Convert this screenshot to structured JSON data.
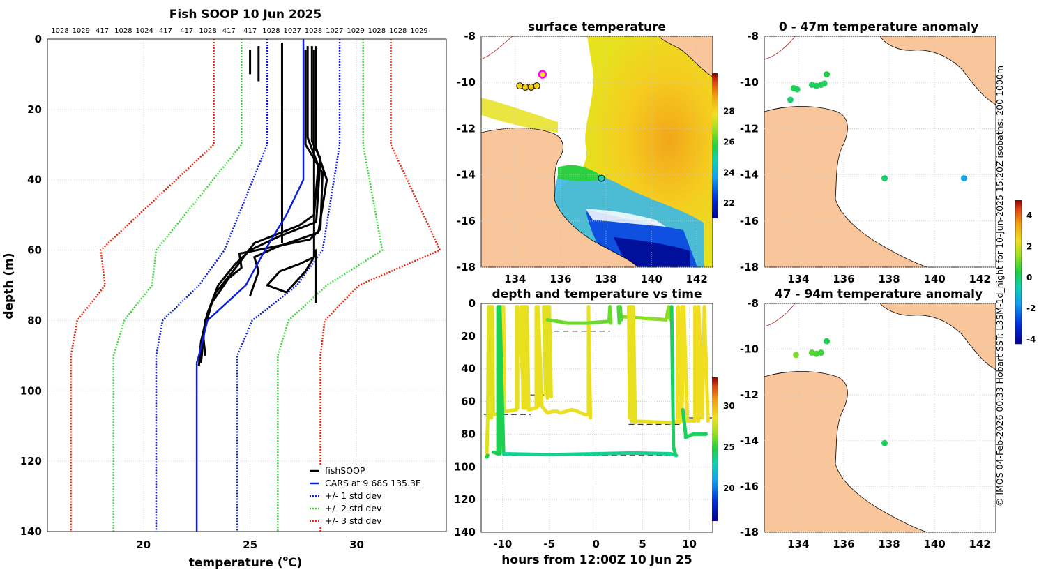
{
  "colors": {
    "fishsoop": "#000000",
    "cars": "#0a1fe0",
    "std1": "#0a1fe0",
    "std2": "#3ad83a",
    "std3": "#e8250c",
    "land": "#f9c59a",
    "grid": "#d9d9d9",
    "axis": "#262626"
  },
  "copyright": "© IMOS 04-Feb-2026 00:33 Hobart SST: L3SM-1d_night for 10-Jun-2025 15:20Z isobaths: 200  1000m",
  "chart_data": [
    {
      "id": "profile",
      "type": "line",
      "title": "Fish SOOP 10 Jun 2025",
      "xlabel": "temperature (°C)",
      "xlabel_main": "temperature (",
      "xlabel_sup": "o",
      "xlabel_unit": "C)",
      "ylabel": "depth (m)",
      "xlim": [
        15.5,
        34.2
      ],
      "ylim": [
        140,
        0
      ],
      "xticks": [
        20,
        25,
        30
      ],
      "yticks": [
        0,
        20,
        40,
        60,
        80,
        100,
        120,
        140
      ],
      "top_labels": [
        "1028",
        "1029",
        "417",
        "1028",
        "1024",
        "417",
        "417",
        "1028",
        "417",
        "417",
        "1028",
        "1027",
        "1028",
        "1027",
        "1029",
        "1028",
        "1028",
        "1029"
      ],
      "legend": [
        "fishSOOP",
        "CARS at 9.68S 135.3E",
        "+/- 1 std dev",
        "+/- 2 std dev",
        "+/- 3 std dev"
      ],
      "cars": {
        "depth": [
          0,
          40,
          50,
          60,
          70,
          80,
          90,
          92,
          140
        ],
        "temp": [
          27.5,
          27.5,
          26.7,
          25.7,
          24.8,
          23.0,
          22.6,
          22.5,
          22.5
        ]
      },
      "std_bands": [
        {
          "name": "1",
          "depth": [
            0,
            30,
            60,
            70,
            80,
            90,
            140
          ],
          "lo": [
            25.8,
            25.8,
            23.8,
            22.6,
            20.9,
            20.6,
            20.6
          ],
          "hi": [
            29.2,
            29.2,
            28.4,
            27.2,
            25.1,
            24.4,
            24.4
          ]
        },
        {
          "name": "2",
          "depth": [
            0,
            30,
            60,
            70,
            80,
            90,
            140
          ],
          "lo": [
            24.6,
            24.6,
            20.6,
            20.4,
            19.1,
            18.6,
            18.6
          ],
          "hi": [
            30.3,
            30.3,
            31.2,
            28.6,
            26.8,
            26.3,
            26.3
          ]
        },
        {
          "name": "3",
          "depth": [
            0,
            30,
            60,
            70,
            80,
            90,
            140
          ],
          "lo": [
            23.3,
            23.3,
            18.0,
            18.2,
            16.9,
            16.6,
            16.6
          ],
          "hi": [
            31.6,
            31.6,
            33.9,
            30.1,
            28.5,
            28.3,
            28.3
          ]
        }
      ],
      "fishsoop_profiles": [
        {
          "depth": [
            2,
            12
          ],
          "temp": [
            25.4,
            25.4
          ]
        },
        {
          "depth": [
            3,
            10
          ],
          "temp": [
            25.0,
            25.0
          ]
        },
        {
          "depth": [
            1,
            58
          ],
          "temp": [
            26.5,
            26.5
          ]
        },
        {
          "depth": [
            2,
            28,
            36,
            50,
            53,
            58,
            62,
            66,
            72,
            80,
            92
          ],
          "temp": [
            27.7,
            27.7,
            28.2,
            28.0,
            27.3,
            25.2,
            24.7,
            24.2,
            23.4,
            22.9,
            22.7
          ]
        },
        {
          "depth": [
            2,
            29,
            34,
            52,
            56,
            60,
            64,
            70,
            78,
            86,
            93
          ],
          "temp": [
            27.9,
            27.9,
            28.3,
            28.1,
            26.4,
            25.0,
            24.3,
            23.5,
            23.0,
            22.7,
            22.6
          ]
        },
        {
          "depth": [
            3,
            30,
            38,
            54,
            57,
            61,
            65,
            68,
            75,
            84,
            90
          ],
          "temp": [
            27.6,
            27.6,
            28.4,
            28.3,
            27.8,
            24.5,
            24.6,
            24.0,
            23.2,
            22.8,
            22.9
          ]
        },
        {
          "depth": [
            2,
            31,
            40,
            55,
            59,
            62,
            66,
            73
          ],
          "temp": [
            28.1,
            28.1,
            28.6,
            28.2,
            26.3,
            25.2,
            25.4,
            25.0
          ]
        },
        {
          "depth": [
            3,
            62,
            64,
            66,
            70,
            72,
            66,
            62,
            60,
            75
          ],
          "temp": [
            28.0,
            28.0,
            27.3,
            26.4,
            25.8,
            26.7,
            27.6,
            28.0,
            28.1,
            28.1
          ]
        }
      ]
    },
    {
      "id": "sst_map",
      "type": "heatmap",
      "title": "surface temperature",
      "xlim": [
        132.5,
        142.7
      ],
      "ylim": [
        -18,
        -8
      ],
      "xticks": [
        134,
        136,
        138,
        140,
        142
      ],
      "yticks": [
        -8,
        -10,
        -12,
        -14,
        -16,
        -18
      ],
      "colorbar": {
        "min": 21,
        "max": 30.5,
        "ticks": [
          22,
          24,
          26,
          28
        ]
      },
      "points": [
        {
          "lon": 134.2,
          "lat": -10.15,
          "t": 28.2
        },
        {
          "lon": 134.45,
          "lat": -10.2,
          "t": 28.1
        },
        {
          "lon": 134.7,
          "lat": -10.2,
          "t": 28.3
        },
        {
          "lon": 134.95,
          "lat": -10.15,
          "t": 28.2
        },
        {
          "lon": 137.8,
          "lat": -14.15,
          "t": 24.8
        }
      ],
      "highlight": {
        "lon": 135.2,
        "lat": -9.65
      }
    },
    {
      "id": "anom_shallow",
      "type": "scatter",
      "title": "0 - 47m temperature anomaly",
      "xlim": [
        132.5,
        142.7
      ],
      "ylim": [
        -18,
        -8
      ],
      "xticks": [
        134,
        136,
        138,
        140,
        142
      ],
      "yticks": [
        -8,
        -10,
        -12,
        -14,
        -16,
        -18
      ],
      "colorbar": {
        "min": -4.3,
        "max": 5.0,
        "ticks": [
          -4,
          -2,
          0,
          2,
          4
        ]
      },
      "points": [
        {
          "lon": 133.8,
          "lat": -10.25,
          "a": 0.2
        },
        {
          "lon": 133.95,
          "lat": -10.3,
          "a": 0.1
        },
        {
          "lon": 133.65,
          "lat": -10.75,
          "a": 0.0
        },
        {
          "lon": 134.6,
          "lat": -10.1,
          "a": 0.1
        },
        {
          "lon": 134.8,
          "lat": -10.15,
          "a": 0.1
        },
        {
          "lon": 135.0,
          "lat": -10.1,
          "a": 0.2
        },
        {
          "lon": 135.15,
          "lat": -10.05,
          "a": 0.1
        },
        {
          "lon": 135.25,
          "lat": -9.65,
          "a": 0.3
        },
        {
          "lon": 137.8,
          "lat": -14.15,
          "a": 0.0
        },
        {
          "lon": 141.3,
          "lat": -14.15,
          "a": -1.6
        }
      ]
    },
    {
      "id": "anom_deep",
      "type": "scatter",
      "title": "47 - 94m temperature anomaly",
      "xlim": [
        132.5,
        142.7
      ],
      "ylim": [
        -18,
        -8
      ],
      "xticks": [
        134,
        136,
        138,
        140,
        142
      ],
      "yticks": [
        -8,
        -10,
        -12,
        -14,
        -16,
        -18
      ],
      "points": [
        {
          "lon": 133.9,
          "lat": -10.25,
          "a": 1.2
        },
        {
          "lon": 134.6,
          "lat": -10.15,
          "a": 0.8
        },
        {
          "lon": 134.8,
          "lat": -10.2,
          "a": 0.7
        },
        {
          "lon": 135.0,
          "lat": -10.15,
          "a": 0.6
        },
        {
          "lon": 135.25,
          "lat": -9.65,
          "a": 0.2
        },
        {
          "lon": 137.8,
          "lat": -14.1,
          "a": 0.1
        }
      ]
    },
    {
      "id": "depth_time",
      "type": "scatter",
      "title": "depth and temperature vs time",
      "xlabel": "hours from 12:00Z 10 Jun 25",
      "xlim": [
        -12.3,
        12.5
      ],
      "ylim": [
        140,
        0
      ],
      "xticks": [
        -10,
        -5,
        0,
        5,
        10
      ],
      "yticks": [
        0,
        20,
        40,
        60,
        80,
        100,
        120,
        140
      ],
      "colorbar": {
        "min": 16,
        "max": 33.5,
        "ticks": [
          20,
          25,
          30
        ]
      },
      "tracks": [
        {
          "t": [
            -11.7,
            -11.6,
            -11.5,
            -11.4,
            -11.3,
            -11.2,
            -11.1,
            -11.0,
            -10.9
          ],
          "d": [
            93,
            70,
            2,
            70,
            2,
            70,
            2,
            68,
            68
          ],
          "temp": 28.2
        },
        {
          "t": [
            -11.7,
            -11.6
          ],
          "d": [
            94,
            93
          ],
          "temp": 24.5
        },
        {
          "t": [
            -10.9,
            -10.2,
            -10.2,
            -10.1,
            -10.1,
            -9.9,
            -9.9,
            -9.8,
            -9.8,
            -9.6
          ],
          "d": [
            68,
            67,
            2,
            66,
            2,
            66,
            2,
            65,
            66,
            66
          ],
          "temp": 28.6
        },
        {
          "t": [
            -9.6,
            -8.5,
            -8.5,
            -8.4,
            -8.4,
            -7.6,
            -7.6,
            -7.4,
            -7.4,
            -7.2
          ],
          "d": [
            66,
            65,
            2,
            64,
            2,
            64,
            2,
            64,
            2,
            65
          ],
          "temp": 28.4
        },
        {
          "t": [
            -7.2,
            -6.4,
            -6.4,
            -6.2,
            -6.2,
            -5.8,
            -5.2,
            -4.6,
            -4.2,
            -3.8,
            -3.2,
            -2.6,
            -2.0,
            -1.2,
            -0.8,
            -0.8,
            -0.6
          ],
          "d": [
            65,
            64,
            2,
            63,
            2,
            63,
            67,
            66,
            66,
            67,
            66,
            65,
            66,
            68,
            68,
            2,
            70
          ],
          "temp": 28.5
        },
        {
          "t": [
            -11.0,
            -10.5,
            -10.5,
            -10.3,
            -10.3,
            -9.9
          ],
          "d": [
            91,
            92,
            2,
            92,
            2,
            92
          ],
          "temp": 24.5
        },
        {
          "t": [
            -9.9,
            -5,
            0,
            4,
            8.0,
            8.6
          ],
          "d": [
            92,
            92.5,
            92,
            91.5,
            92,
            93
          ],
          "temp": 23.5
        },
        {
          "t": [
            -8.0,
            -7.8,
            -7.8,
            -7.6
          ],
          "d": [
            2,
            64,
            2,
            56
          ],
          "temp": 28.5
        },
        {
          "t": [
            -5.6,
            -5.4,
            -5.4,
            -5.2,
            -5.2,
            -5.0,
            -5.0,
            -4.8
          ],
          "d": [
            2,
            56,
            2,
            58,
            2,
            56,
            2,
            57
          ],
          "temp": 28.3
        },
        {
          "t": [
            -5.2,
            -3.0,
            -1.0,
            1.4,
            1.5,
            1.6
          ],
          "d": [
            10,
            12,
            12,
            11,
            2,
            12
          ],
          "temp": 26.0
        },
        {
          "t": [
            2.5,
            5,
            7.5,
            7.8,
            7.9,
            8.0
          ],
          "d": [
            8,
            9,
            10,
            2,
            9,
            10
          ],
          "temp": 26.5
        },
        {
          "t": [
            3.5,
            3.6,
            3.6,
            3.8,
            3.8,
            4.0,
            4.0,
            4.2,
            4.2,
            8.2
          ],
          "d": [
            2,
            70,
            2,
            72,
            2,
            72,
            2,
            73,
            72,
            73
          ],
          "temp": 28.4
        },
        {
          "t": [
            8.2,
            8.8,
            8.8,
            9.0,
            9.2,
            9.2,
            9.4,
            9.8
          ],
          "d": [
            73,
            72,
            2,
            73,
            2,
            72,
            2,
            72
          ],
          "temp": 28.6
        },
        {
          "t": [
            9.8,
            10.6,
            10.6,
            11.0,
            11.0,
            11.4,
            11.6,
            12.0
          ],
          "d": [
            72,
            72,
            2,
            72,
            2,
            70,
            2,
            72
          ],
          "temp": 28.7
        },
        {
          "t": [
            9.3,
            9.6,
            9.6,
            10.4,
            10.6,
            11.8
          ],
          "d": [
            65,
            80,
            82,
            80,
            80,
            80
          ],
          "temp": 24.3
        },
        {
          "t": [
            2.4,
            2.5,
            2.6,
            2.7
          ],
          "d": [
            2,
            12,
            2,
            10
          ],
          "temp": 25.5
        },
        {
          "t": [
            8.1,
            8.3,
            8.5
          ],
          "d": [
            2,
            88,
            92
          ],
          "temp": 24.2
        }
      ],
      "bottom_lines": [
        {
          "t": [
            -12,
            -7
          ],
          "d": 68
        },
        {
          "t": [
            -8,
            -5
          ],
          "d": 56
        },
        {
          "t": [
            -4.5,
            1.5
          ],
          "d": 17
        },
        {
          "t": [
            -10,
            8.8
          ],
          "d": 93
        },
        {
          "t": [
            3.5,
            9
          ],
          "d": 74
        },
        {
          "t": [
            9,
            12.5
          ],
          "d": 70
        }
      ]
    }
  ]
}
